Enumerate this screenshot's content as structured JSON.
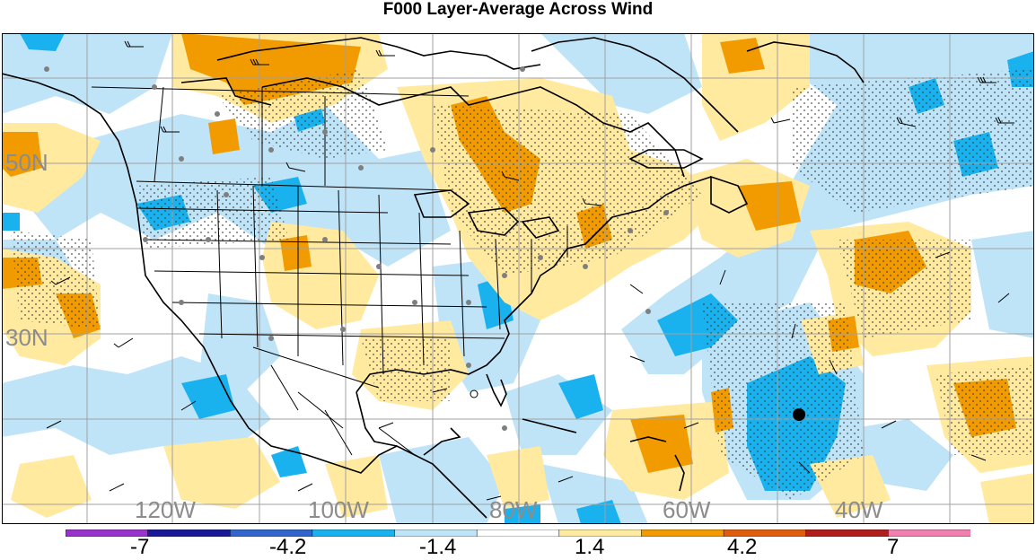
{
  "title": "F000 Layer-Average Across Wind",
  "lat_labels": [
    "50N",
    "30N"
  ],
  "lon_labels": [
    "120W",
    "100W",
    "80W",
    "60W",
    "40W"
  ],
  "colorbar": {
    "tick_labels": [
      "-7",
      "-4.2",
      "-1.4",
      "1.4",
      "4.2",
      "7"
    ],
    "colors": [
      "#9933cc",
      "#1a1a99",
      "#3366cc",
      "#1ab2ee",
      "#bfe4f7",
      "#ffffff",
      "#ffeaa0",
      "#f29b00",
      "#e05d10",
      "#b01e1e",
      "#f080b0"
    ]
  },
  "colors": {
    "light_blue": "#bfe4f7",
    "mid_blue": "#1ab2ee",
    "light_yellow": "#ffeaa0",
    "orange": "#f29b00",
    "coastline": "#000000",
    "grid": "#a0a0a0",
    "station_dot": "#7f7f7f"
  },
  "map": {
    "features": [
      "coastlines",
      "state-borders",
      "country-borders",
      "wind-barbs",
      "stipple-significance",
      "station-dots",
      "target-marker"
    ]
  }
}
